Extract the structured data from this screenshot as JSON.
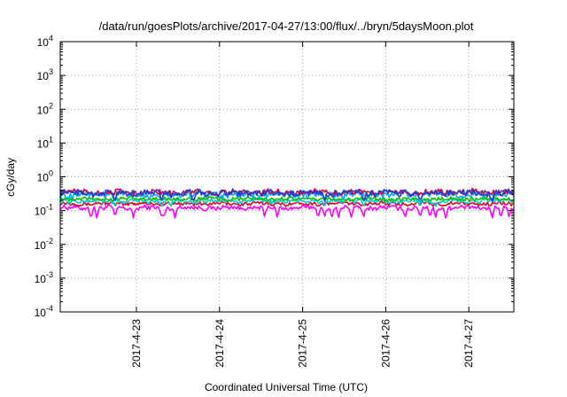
{
  "chart_data": {
    "type": "line",
    "title": "/data/run/goesPlots/archive/2017-04-27/13:00/flux/../bryn/5daysMoon.plot",
    "xlabel": "Coordinated Universal Time (UTC)",
    "ylabel": "cGy/day",
    "y_scale": "log",
    "ylim": [
      0.0001,
      10000
    ],
    "xlim": [
      "2017-04-22 02:00",
      "2017-04-27 13:00"
    ],
    "y_ticks": [
      {
        "value": 0.0001,
        "base": "10",
        "exp": "-4"
      },
      {
        "value": 0.001,
        "base": "10",
        "exp": "-3"
      },
      {
        "value": 0.01,
        "base": "10",
        "exp": "-2"
      },
      {
        "value": 0.1,
        "base": "10",
        "exp": "-1"
      },
      {
        "value": 1,
        "base": "10",
        "exp": "0"
      },
      {
        "value": 10,
        "base": "10",
        "exp": "1"
      },
      {
        "value": 100,
        "base": "10",
        "exp": "2"
      },
      {
        "value": 1000,
        "base": "10",
        "exp": "3"
      },
      {
        "value": 10000,
        "base": "10",
        "exp": "4"
      }
    ],
    "x_ticks": [
      {
        "label": "2017-4-23",
        "value": "2017-04-23"
      },
      {
        "label": "2017-4-24",
        "value": "2017-04-24"
      },
      {
        "label": "2017-4-25",
        "value": "2017-04-25"
      },
      {
        "label": "2017-4-26",
        "value": "2017-04-26"
      },
      {
        "label": "2017-4-27",
        "value": "2017-04-27"
      }
    ],
    "grid": true,
    "legend": "none",
    "series": [
      {
        "color": "#ff00ff",
        "level": 0.12,
        "variability": 0.12,
        "dips": [
          0.37,
          0.44,
          0.66,
          0.88,
          1.22,
          1.25,
          1.38,
          2.46,
          2.61,
          3.1,
          3.18,
          3.27,
          3.35,
          3.5,
          3.65,
          4.15,
          4.33,
          4.45,
          4.52,
          4.64,
          5.3,
          5.4,
          5.2
        ],
        "dip_min": 0.06
      },
      {
        "color": "#e8002a",
        "level": 0.16,
        "variability": 0.1,
        "dips": [],
        "dip_min": 0.16
      },
      {
        "color": "#00cccc",
        "level": 0.19,
        "variability": 0.12,
        "dips": [
          0.66,
          1.22,
          1.33,
          3.18,
          3.65,
          4.33,
          4.52
        ],
        "dip_min": 0.13
      },
      {
        "color": "#00c000",
        "level": 0.22,
        "variability": 0.1,
        "dips": [],
        "dip_min": 0.22
      },
      {
        "color": "#00aaff",
        "level": 0.3,
        "variability": 0.18,
        "dips": [
          0.66,
          1.22,
          3.18,
          4.33
        ],
        "dip_min": 0.16
      },
      {
        "color": "#e8002a",
        "level": 0.35,
        "variability": 0.15,
        "dips": [],
        "dip_min": 0.35
      },
      {
        "color": "#1f3fd8",
        "level": 0.33,
        "variability": 0.18,
        "dips": [
          0.66,
          1.22,
          1.6,
          3.18,
          3.65,
          4.33,
          5.2
        ],
        "dip_min": 0.18
      }
    ],
    "colors": {
      "axis": "#000000",
      "grid": "#a0a0a0",
      "background": "#ffffff"
    }
  }
}
